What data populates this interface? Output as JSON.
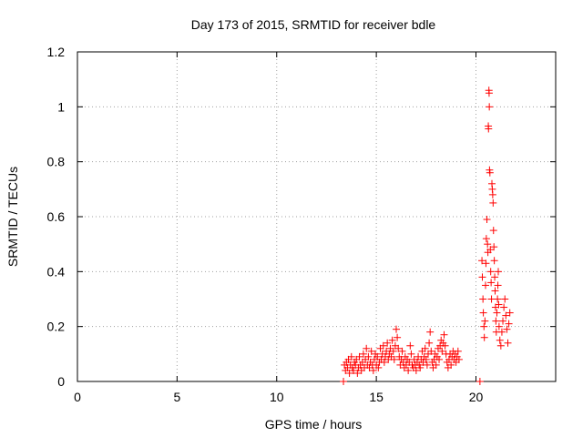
{
  "chart_data": {
    "type": "scatter",
    "title": "Day 173 of 2015, SRMTID for receiver bdle",
    "xlabel": "GPS time / hours",
    "ylabel": "SRMTID / TECUs",
    "xlim": [
      0,
      24
    ],
    "ylim": [
      0,
      1.2
    ],
    "xticks": [
      0,
      5,
      10,
      15,
      20
    ],
    "yticks": [
      0,
      0.2,
      0.4,
      0.6,
      0.8,
      1,
      1.2
    ],
    "xtick_labels": [
      "0",
      "5",
      "10",
      "15",
      "20"
    ],
    "ytick_labels": [
      "0",
      "0.2",
      "0.4",
      "0.6",
      "0.8",
      "1",
      "1.2"
    ],
    "grid": true,
    "legend": false,
    "marker": "+",
    "series": [
      {
        "name": "SRMTID",
        "color": "#ff0000",
        "points": [
          [
            13.35,
            0.0
          ],
          [
            13.4,
            0.06
          ],
          [
            13.45,
            0.04
          ],
          [
            13.5,
            0.07
          ],
          [
            13.55,
            0.05
          ],
          [
            13.6,
            0.08
          ],
          [
            13.65,
            0.03
          ],
          [
            13.7,
            0.06
          ],
          [
            13.75,
            0.09
          ],
          [
            13.8,
            0.05
          ],
          [
            13.85,
            0.04
          ],
          [
            13.9,
            0.07
          ],
          [
            13.95,
            0.06
          ],
          [
            14.0,
            0.08
          ],
          [
            14.05,
            0.03
          ],
          [
            14.1,
            0.05
          ],
          [
            14.15,
            0.09
          ],
          [
            14.2,
            0.06
          ],
          [
            14.25,
            0.04
          ],
          [
            14.3,
            0.07
          ],
          [
            14.35,
            0.1
          ],
          [
            14.4,
            0.05
          ],
          [
            14.45,
            0.08
          ],
          [
            14.5,
            0.12
          ],
          [
            14.55,
            0.06
          ],
          [
            14.6,
            0.09
          ],
          [
            14.65,
            0.05
          ],
          [
            14.7,
            0.07
          ],
          [
            14.75,
            0.11
          ],
          [
            14.8,
            0.06
          ],
          [
            14.85,
            0.04
          ],
          [
            14.9,
            0.08
          ],
          [
            14.95,
            0.1
          ],
          [
            15.0,
            0.06
          ],
          [
            15.05,
            0.09
          ],
          [
            15.1,
            0.05
          ],
          [
            15.15,
            0.07
          ],
          [
            15.2,
            0.12
          ],
          [
            15.25,
            0.08
          ],
          [
            15.3,
            0.1
          ],
          [
            15.35,
            0.13
          ],
          [
            15.4,
            0.07
          ],
          [
            15.45,
            0.09
          ],
          [
            15.5,
            0.11
          ],
          [
            15.55,
            0.14
          ],
          [
            15.6,
            0.08
          ],
          [
            15.65,
            0.1
          ],
          [
            15.7,
            0.12
          ],
          [
            15.75,
            0.09
          ],
          [
            15.8,
            0.15
          ],
          [
            15.85,
            0.11
          ],
          [
            15.9,
            0.08
          ],
          [
            15.95,
            0.13
          ],
          [
            16.0,
            0.19
          ],
          [
            16.05,
            0.16
          ],
          [
            16.1,
            0.12
          ],
          [
            16.15,
            0.09
          ],
          [
            16.2,
            0.06
          ],
          [
            16.25,
            0.08
          ],
          [
            16.3,
            0.11
          ],
          [
            16.35,
            0.07
          ],
          [
            16.4,
            0.05
          ],
          [
            16.45,
            0.09
          ],
          [
            16.5,
            0.06
          ],
          [
            16.55,
            0.08
          ],
          [
            16.6,
            0.04
          ],
          [
            16.65,
            0.07
          ],
          [
            16.7,
            0.13
          ],
          [
            16.75,
            0.1
          ],
          [
            16.8,
            0.06
          ],
          [
            16.85,
            0.05
          ],
          [
            16.9,
            0.08
          ],
          [
            16.95,
            0.06
          ],
          [
            17.0,
            0.04
          ],
          [
            17.05,
            0.07
          ],
          [
            17.1,
            0.09
          ],
          [
            17.15,
            0.06
          ],
          [
            17.2,
            0.05
          ],
          [
            17.25,
            0.08
          ],
          [
            17.3,
            0.11
          ],
          [
            17.35,
            0.07
          ],
          [
            17.4,
            0.09
          ],
          [
            17.45,
            0.12
          ],
          [
            17.5,
            0.08
          ],
          [
            17.55,
            0.06
          ],
          [
            17.6,
            0.1
          ],
          [
            17.65,
            0.14
          ],
          [
            17.7,
            0.18
          ],
          [
            17.75,
            0.11
          ],
          [
            17.8,
            0.07
          ],
          [
            17.85,
            0.05
          ],
          [
            17.9,
            0.08
          ],
          [
            17.95,
            0.1
          ],
          [
            18.0,
            0.06
          ],
          [
            18.05,
            0.09
          ],
          [
            18.1,
            0.12
          ],
          [
            18.15,
            0.08
          ],
          [
            18.2,
            0.13
          ],
          [
            18.25,
            0.15
          ],
          [
            18.3,
            0.11
          ],
          [
            18.35,
            0.14
          ],
          [
            18.4,
            0.17
          ],
          [
            18.45,
            0.13
          ],
          [
            18.5,
            0.1
          ],
          [
            18.55,
            0.07
          ],
          [
            18.6,
            0.05
          ],
          [
            18.65,
            0.08
          ],
          [
            18.7,
            0.1
          ],
          [
            18.75,
            0.06
          ],
          [
            18.8,
            0.09
          ],
          [
            18.85,
            0.11
          ],
          [
            18.9,
            0.08
          ],
          [
            18.95,
            0.1
          ],
          [
            19.0,
            0.07
          ],
          [
            19.05,
            0.09
          ],
          [
            19.1,
            0.11
          ],
          [
            19.15,
            0.08
          ],
          [
            20.2,
            0.0
          ],
          [
            20.3,
            0.44
          ],
          [
            20.32,
            0.38
          ],
          [
            20.35,
            0.3
          ],
          [
            20.37,
            0.25
          ],
          [
            20.4,
            0.2
          ],
          [
            20.42,
            0.16
          ],
          [
            20.45,
            0.22
          ],
          [
            20.48,
            0.35
          ],
          [
            20.5,
            0.43
          ],
          [
            20.52,
            0.52
          ],
          [
            20.55,
            0.59
          ],
          [
            20.58,
            0.5
          ],
          [
            20.6,
            0.47
          ],
          [
            20.62,
            0.93
          ],
          [
            20.63,
            0.92
          ],
          [
            20.65,
            1.06
          ],
          [
            20.66,
            1.05
          ],
          [
            20.67,
            1.0
          ],
          [
            20.68,
            0.77
          ],
          [
            20.7,
            0.76
          ],
          [
            20.72,
            0.48
          ],
          [
            20.74,
            0.4
          ],
          [
            20.76,
            0.36
          ],
          [
            20.78,
            0.3
          ],
          [
            20.8,
            0.72
          ],
          [
            20.82,
            0.7
          ],
          [
            20.84,
            0.68
          ],
          [
            20.86,
            0.65
          ],
          [
            20.88,
            0.55
          ],
          [
            20.9,
            0.49
          ],
          [
            20.92,
            0.44
          ],
          [
            20.94,
            0.38
          ],
          [
            20.96,
            0.33
          ],
          [
            20.98,
            0.27
          ],
          [
            21.0,
            0.22
          ],
          [
            21.02,
            0.18
          ],
          [
            21.05,
            0.25
          ],
          [
            21.08,
            0.3
          ],
          [
            21.1,
            0.35
          ],
          [
            21.12,
            0.4
          ],
          [
            21.14,
            0.28
          ],
          [
            21.16,
            0.2
          ],
          [
            21.2,
            0.15
          ],
          [
            21.25,
            0.13
          ],
          [
            21.3,
            0.18
          ],
          [
            21.35,
            0.22
          ],
          [
            21.4,
            0.27
          ],
          [
            21.45,
            0.3
          ],
          [
            21.5,
            0.24
          ],
          [
            21.55,
            0.19
          ],
          [
            21.6,
            0.14
          ],
          [
            21.65,
            0.21
          ],
          [
            21.7,
            0.25
          ]
        ]
      }
    ]
  }
}
